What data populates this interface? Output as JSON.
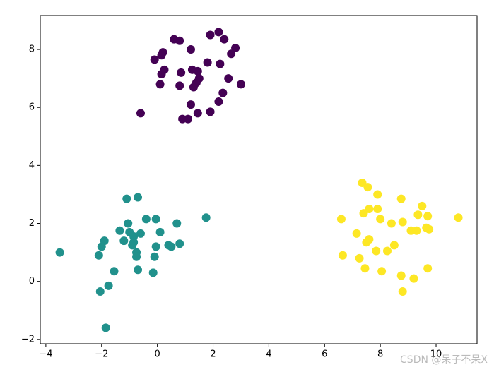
{
  "chart_data": {
    "type": "scatter",
    "xlim": [
      -4.2,
      11.47
    ],
    "ylim": [
      -2.15,
      9.17
    ],
    "xticks": [
      {
        "value": -4,
        "label": "−4"
      },
      {
        "value": -2,
        "label": "−2"
      },
      0,
      2,
      4,
      6,
      8,
      10
    ],
    "yticks": [
      {
        "value": -2,
        "label": "−2"
      },
      0,
      2,
      4,
      6,
      8
    ],
    "watermark": "CSDN @呆子不呆X",
    "series": [
      {
        "color": "#440154",
        "x": [
          2.2,
          1.9,
          2.4,
          0.6,
          0.8,
          2.8,
          1.2,
          2.65,
          0.2,
          0.15,
          -0.1,
          1.8,
          2.25,
          0.25,
          0.15,
          0.85,
          1.25,
          1.45,
          2.55,
          1.5,
          1.4,
          0.1,
          0.8,
          1.3,
          3.0,
          2.35,
          1.2,
          2.2,
          -0.6,
          1.45,
          1.9,
          0.9,
          1.1
        ],
        "y": [
          8.6,
          8.5,
          8.35,
          8.35,
          8.3,
          8.05,
          8.0,
          7.85,
          7.9,
          7.8,
          7.65,
          7.55,
          7.5,
          7.3,
          7.15,
          7.2,
          7.3,
          7.25,
          7.0,
          7.0,
          6.85,
          6.8,
          6.75,
          6.7,
          6.8,
          6.5,
          6.1,
          6.2,
          5.8,
          5.8,
          5.85,
          5.6,
          5.6
        ]
      },
      {
        "color": "#21918c",
        "x": [
          -3.5,
          -1.1,
          -0.7,
          1.75,
          -0.4,
          -0.05,
          -1.05,
          0.7,
          -1.35,
          -1.0,
          -0.6,
          0.1,
          -0.85,
          -1.2,
          -0.85,
          -0.9,
          0.8,
          0.4,
          0.5,
          -0.05,
          -1.9,
          -2.0,
          -0.75,
          -2.1,
          -0.75,
          -0.1,
          -1.55,
          -0.7,
          -0.15,
          -1.75,
          -2.05,
          -1.85
        ],
        "y": [
          1.0,
          2.85,
          2.9,
          2.2,
          2.15,
          2.15,
          2.0,
          2.0,
          1.75,
          1.7,
          1.65,
          1.7,
          1.55,
          1.4,
          1.35,
          1.25,
          1.3,
          1.25,
          1.2,
          1.2,
          1.4,
          1.2,
          1.0,
          0.9,
          0.85,
          0.85,
          0.35,
          0.4,
          0.3,
          -0.15,
          -0.35,
          -1.6
        ]
      },
      {
        "color": "#fde725",
        "x": [
          7.35,
          7.55,
          7.9,
          8.75,
          7.6,
          7.9,
          9.5,
          7.4,
          9.35,
          9.7,
          10.8,
          6.6,
          8.0,
          8.8,
          8.4,
          9.65,
          9.75,
          9.1,
          9.3,
          7.15,
          7.6,
          7.5,
          8.5,
          7.85,
          8.25,
          6.65,
          7.25,
          9.7,
          7.45,
          8.05,
          8.75,
          9.2,
          8.8
        ],
        "y": [
          3.4,
          3.25,
          3.0,
          2.85,
          2.5,
          2.5,
          2.6,
          2.35,
          2.3,
          2.25,
          2.2,
          2.15,
          2.15,
          2.05,
          2.0,
          1.85,
          1.8,
          1.75,
          1.75,
          1.65,
          1.45,
          1.35,
          1.25,
          1.05,
          1.05,
          0.9,
          0.8,
          0.45,
          0.45,
          0.35,
          0.2,
          0.1,
          -0.35
        ]
      }
    ]
  }
}
